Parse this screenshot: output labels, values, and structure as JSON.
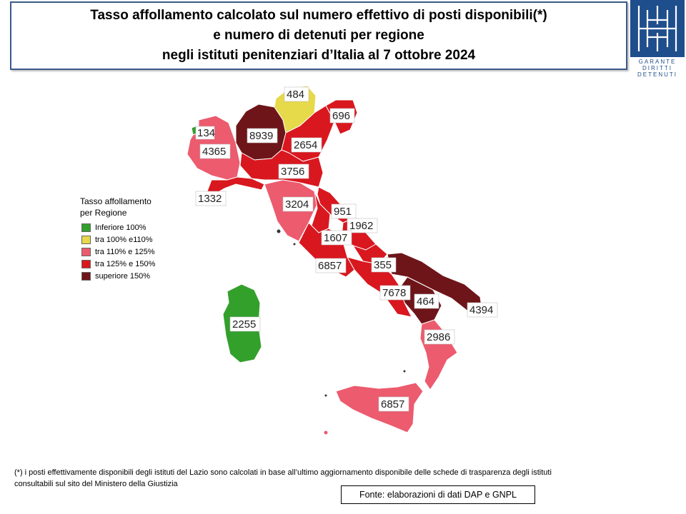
{
  "title": {
    "line1": "Tasso affollamento calcolato sul numero effettivo di posti disponibili(*)",
    "line2": "e numero di detenuti per regione",
    "line3": "negli istituti penitenziari d’Italia al 7 ottobre 2024"
  },
  "logo": {
    "icon": "garante-logo-icon",
    "line1": "GARANTE",
    "line2": "DIRITTI",
    "line3": "DETENUTI"
  },
  "legend": {
    "title_line1": "Tasso affollamento",
    "title_line2": "per Regione",
    "items": [
      {
        "label": "Inferiore 100%",
        "color": "#33a02c"
      },
      {
        "label": "tra 100% e110%",
        "color": "#e6d94a"
      },
      {
        "label": "tra 110% e 125%",
        "color": "#ec5b6e"
      },
      {
        "label": "tra 125% e 150%",
        "color": "#d9171f"
      },
      {
        "label": "superiore 150%",
        "color": "#6e1519"
      }
    ]
  },
  "colors": {
    "inferiore_100": "#33a02c",
    "tra_100_110": "#e6d94a",
    "tra_110_125": "#ec5b6e",
    "tra_125_150": "#d9171f",
    "superiore_150": "#6e1519"
  },
  "map_labels": [
    "134",
    "484",
    "696",
    "8939",
    "4365",
    "2654",
    "3756",
    "1332",
    "3204",
    "951",
    "1962",
    "1607",
    "6857",
    "355",
    "7678",
    "464",
    "4394",
    "2255",
    "2986",
    "6857"
  ],
  "footnote": {
    "line1": "(*) i posti effettivamente disponibili  degli istituti del Lazio sono calcolati in base all’ultimo aggiornamento disponibile  delle schede di trasparenza degli istituti",
    "line2": "consultabili sul sito del Ministero della Giustizia"
  },
  "source": "Fonte: elaborazioni di dati DAP e GNPL"
}
